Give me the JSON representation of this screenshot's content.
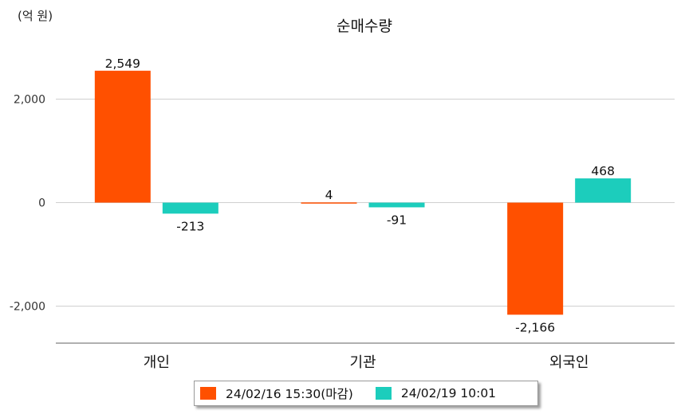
{
  "unit_label": "(억 원)",
  "chart_data": {
    "type": "bar",
    "title": "순매수량",
    "ylabel": "(억 원)",
    "categories": [
      "개인",
      "기관",
      "외국인"
    ],
    "series": [
      {
        "name": "24/02/16 15:30(마감)",
        "values": [
          2549,
          4,
          -2166
        ],
        "labels": [
          "2,549",
          "4",
          "-2,166"
        ],
        "color": "#ff5000"
      },
      {
        "name": "24/02/19 10:01",
        "values": [
          -213,
          -91,
          468
        ],
        "labels": [
          "-213",
          "-91",
          "468"
        ],
        "color": "#1ccdbc"
      }
    ],
    "yticks": [
      2000,
      0,
      -2000
    ],
    "ytick_labels": [
      "2,000",
      "0",
      "-2,000"
    ],
    "ylim": [
      -2700,
      2600
    ],
    "grid": true,
    "legend_position": "bottom-center"
  }
}
